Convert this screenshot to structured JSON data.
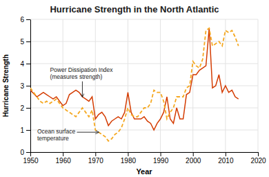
{
  "chart_data": {
    "type": "line",
    "title": "Hurricane Strength in the North Atlantic",
    "xlabel": "Year",
    "ylabel": "Hurricane Strength",
    "x": [
      1950,
      1951,
      1952,
      1953,
      1954,
      1955,
      1956,
      1957,
      1958,
      1959,
      1960,
      1961,
      1962,
      1963,
      1964,
      1965,
      1966,
      1967,
      1968,
      1969,
      1970,
      1971,
      1972,
      1973,
      1974,
      1975,
      1976,
      1977,
      1978,
      1979,
      1980,
      1981,
      1982,
      1983,
      1984,
      1985,
      1986,
      1987,
      1988,
      1989,
      1990,
      1991,
      1992,
      1993,
      1994,
      1995,
      1996,
      1997,
      1998,
      1999,
      2000,
      2001,
      2002,
      2003,
      2004,
      2005,
      2006,
      2007,
      2008,
      2009,
      2010,
      2011,
      2012,
      2013,
      2014
    ],
    "series": [
      {
        "color": "#d43b00",
        "line_style": "solid",
        "values": [
          2.8,
          2.65,
          2.5,
          2.6,
          2.7,
          2.6,
          2.5,
          2.4,
          2.5,
          2.3,
          2.1,
          2.2,
          2.6,
          2.7,
          2.8,
          2.7,
          2.5,
          2.4,
          2.3,
          2.5,
          1.5,
          1.7,
          1.8,
          1.6,
          1.2,
          1.4,
          1.5,
          1.6,
          1.5,
          1.8,
          2.7,
          1.8,
          1.5,
          1.5,
          1.5,
          1.6,
          1.4,
          1.3,
          1.0,
          1.3,
          1.5,
          1.8,
          2.5,
          1.5,
          1.3,
          2.0,
          1.5,
          1.5,
          2.6,
          2.7,
          3.5,
          3.5,
          3.7,
          3.8,
          3.9,
          5.6,
          2.9,
          3.0,
          3.5,
          2.7,
          3.0,
          2.7,
          2.8,
          2.5,
          2.4
        ]
      },
      {
        "color": "#f5a820",
        "line_style": "dashed",
        "values": [
          2.9,
          2.7,
          2.5,
          2.3,
          2.2,
          2.3,
          2.2,
          2.3,
          2.4,
          2.2,
          2.0,
          1.9,
          1.8,
          1.7,
          1.6,
          1.8,
          2.0,
          1.8,
          1.6,
          1.9,
          1.0,
          0.9,
          0.8,
          0.7,
          0.5,
          0.6,
          0.8,
          0.9,
          1.1,
          1.5,
          2.0,
          1.7,
          1.6,
          1.6,
          1.8,
          2.0,
          2.0,
          2.2,
          2.8,
          2.7,
          2.7,
          2.3,
          1.5,
          1.8,
          2.0,
          2.5,
          2.5,
          2.5,
          2.9,
          3.0,
          4.1,
          3.9,
          3.8,
          4.2,
          5.5,
          5.6,
          4.8,
          4.9,
          5.0,
          4.8,
          5.5,
          5.4,
          5.5,
          5.2,
          4.8
        ]
      }
    ],
    "xlim": [
      1950,
      2020
    ],
    "xticks": [
      1950,
      1960,
      1970,
      1980,
      1990,
      2000,
      2010,
      2020
    ],
    "ylim": [
      0,
      6
    ],
    "yticks": [
      0,
      1,
      2,
      3,
      4,
      5,
      6
    ],
    "grid": true,
    "annotations": [
      "Power Dissipation Index\n(measures strength)",
      "Ocean surface\ntemperature"
    ]
  }
}
